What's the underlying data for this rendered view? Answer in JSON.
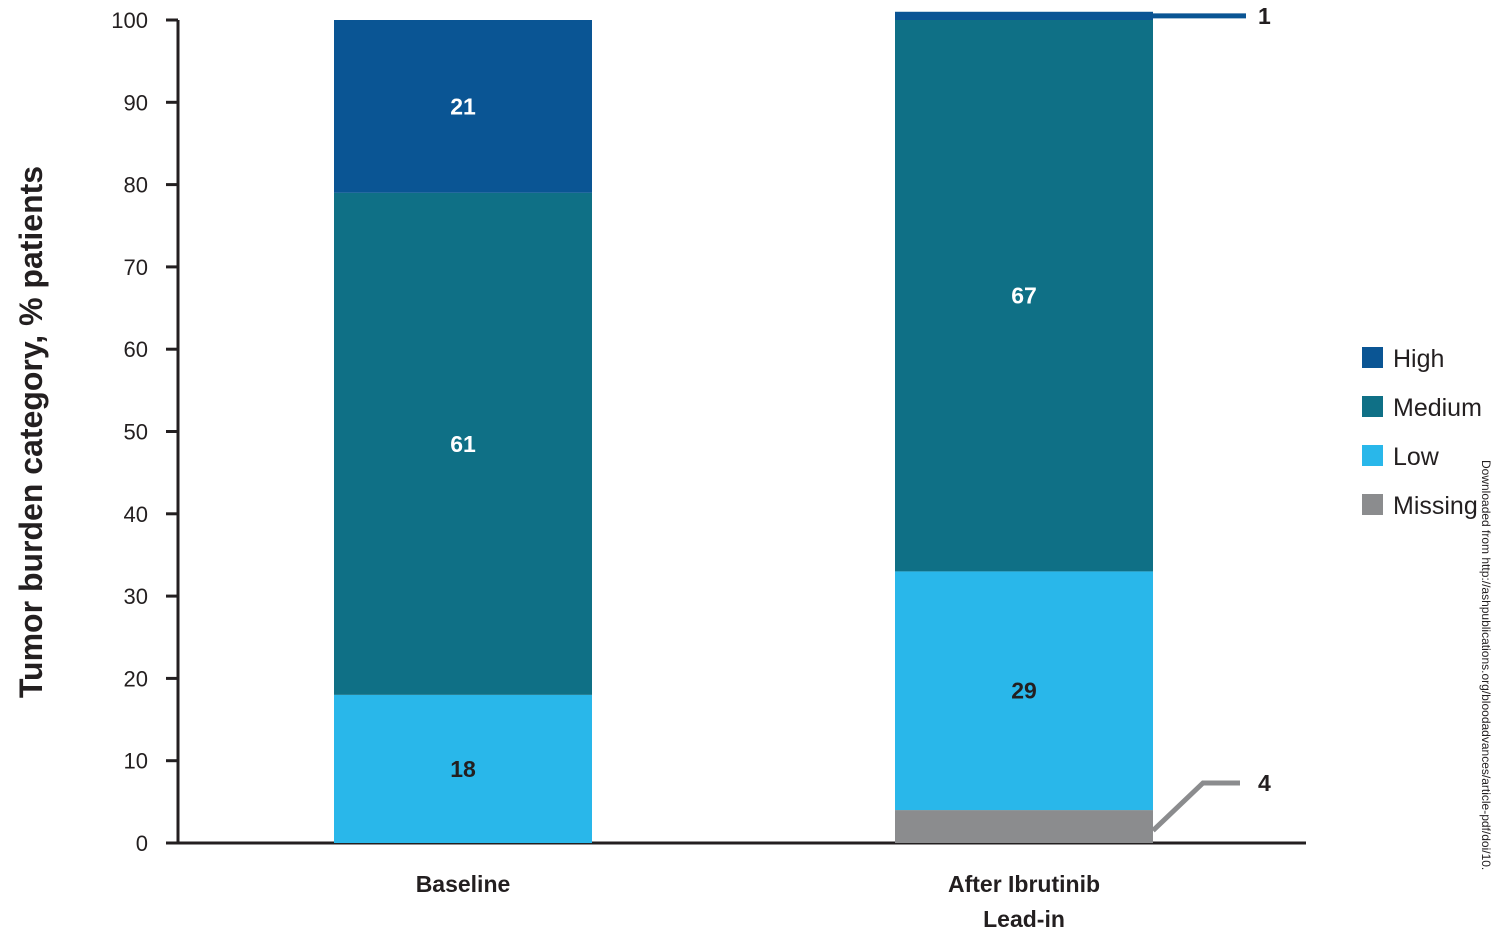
{
  "chart_data": {
    "type": "bar",
    "stacked": true,
    "ylabel": "Tumor burden category, % patients",
    "xlabel": "",
    "ylim": [
      0,
      100
    ],
    "yticks": [
      0,
      10,
      20,
      30,
      40,
      50,
      60,
      70,
      80,
      90,
      100
    ],
    "categories": [
      [
        "Baseline"
      ],
      [
        "After Ibrutinib",
        "Lead-in"
      ]
    ],
    "series": [
      {
        "name": "Missing",
        "color": "#8b8c8e",
        "values": [
          0,
          4
        ]
      },
      {
        "name": "Low",
        "color": "#29b7ea",
        "values": [
          18,
          29
        ]
      },
      {
        "name": "Medium",
        "color": "#0f7086",
        "values": [
          61,
          67
        ]
      },
      {
        "name": "High",
        "color": "#0a5594",
        "values": [
          21,
          1
        ]
      }
    ],
    "segment_labels": [
      {
        "category": 0,
        "series": "Low",
        "text": "18",
        "color": "#231f20"
      },
      {
        "category": 0,
        "series": "Medium",
        "text": "61",
        "color": "#ffffff"
      },
      {
        "category": 0,
        "series": "High",
        "text": "21",
        "color": "#ffffff"
      },
      {
        "category": 1,
        "series": "Low",
        "text": "29",
        "color": "#231f20"
      },
      {
        "category": 1,
        "series": "Medium",
        "text": "67",
        "color": "#ffffff"
      }
    ],
    "callouts": [
      {
        "category": 1,
        "series": "High",
        "text": "1"
      },
      {
        "category": 1,
        "series": "Missing",
        "text": "4"
      }
    ],
    "legend": {
      "placement": "right",
      "order": [
        "High",
        "Medium",
        "Low",
        "Missing"
      ]
    },
    "grid": false
  },
  "side_note": "Downloaded from http://ashpublications.org/bloodadvances/article-pdf/doi/10."
}
